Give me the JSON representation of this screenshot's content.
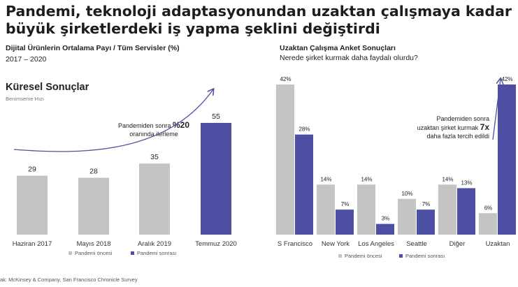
{
  "headline": "Pandemi, teknoloji adaptasyonundan uzaktan çalışmaya kadar büyük şirketlerdeki iş yapma şeklini değiştirdi",
  "left_panel": {
    "title": "Dijital Ürünlerin Ortalama Payı / Tüm Servisler (%)",
    "period": "2017 – 2020",
    "section_title": "Küresel Sonuçlar",
    "section_subtitle": "Benimseme Hızı",
    "annotation": {
      "prefix": "Pandemiden sonra",
      "highlight": "%20",
      "suffix": "oranında ilerleme"
    }
  },
  "right_panel": {
    "title": "Uzaktan Çalışma Anket Sonuçları",
    "subtitle": "Nerede şirket kurmak daha faydalı olurdu?",
    "annotation": {
      "line1": "Pandemiden sonra",
      "line2_prefix": "uzaktan şirket kurmak",
      "highlight": "7x",
      "line3": "daha fazla tercih edildi"
    }
  },
  "source": "ak: McKinsey & Company, San Francisco Chronicle Survey",
  "colors": {
    "before": "#c4c4c4",
    "after": "#4d4fa3",
    "headline": "#1d1d1d"
  },
  "chart_data": [
    {
      "type": "bar",
      "categories": [
        "Haziran 2017",
        "Mayıs 2018",
        "Aralık 2019",
        "Temmuz 2020"
      ],
      "values": [
        29,
        28,
        35,
        55
      ],
      "value_labels": [
        "29",
        "28",
        "35",
        "55"
      ],
      "bar_groups": [
        "before",
        "before",
        "before",
        "after"
      ],
      "legend": [
        "Pandemi öncesi",
        "Pandemi sonrası"
      ],
      "legend_placement": "bottom",
      "ylim": [
        0,
        55
      ],
      "grid": false
    },
    {
      "type": "bar",
      "categories": [
        "S Francisco",
        "New York",
        "Los Angeles",
        "Seattle",
        "Diğer",
        "Uzaktan"
      ],
      "series": [
        {
          "name": "Pandemi öncesi",
          "values": [
            42,
            14,
            14,
            10,
            14,
            6
          ],
          "labels": [
            "42%",
            "14%",
            "14%",
            "10%",
            "14%",
            "6%"
          ]
        },
        {
          "name": "Pandemi sonrası",
          "values": [
            28,
            7,
            3,
            7,
            13,
            42
          ],
          "labels": [
            "28%",
            "7%",
            "3%",
            "7%",
            "13%",
            "42%"
          ]
        }
      ],
      "legend_placement": "bottom",
      "ylim": [
        0,
        42
      ],
      "grid": false
    }
  ]
}
